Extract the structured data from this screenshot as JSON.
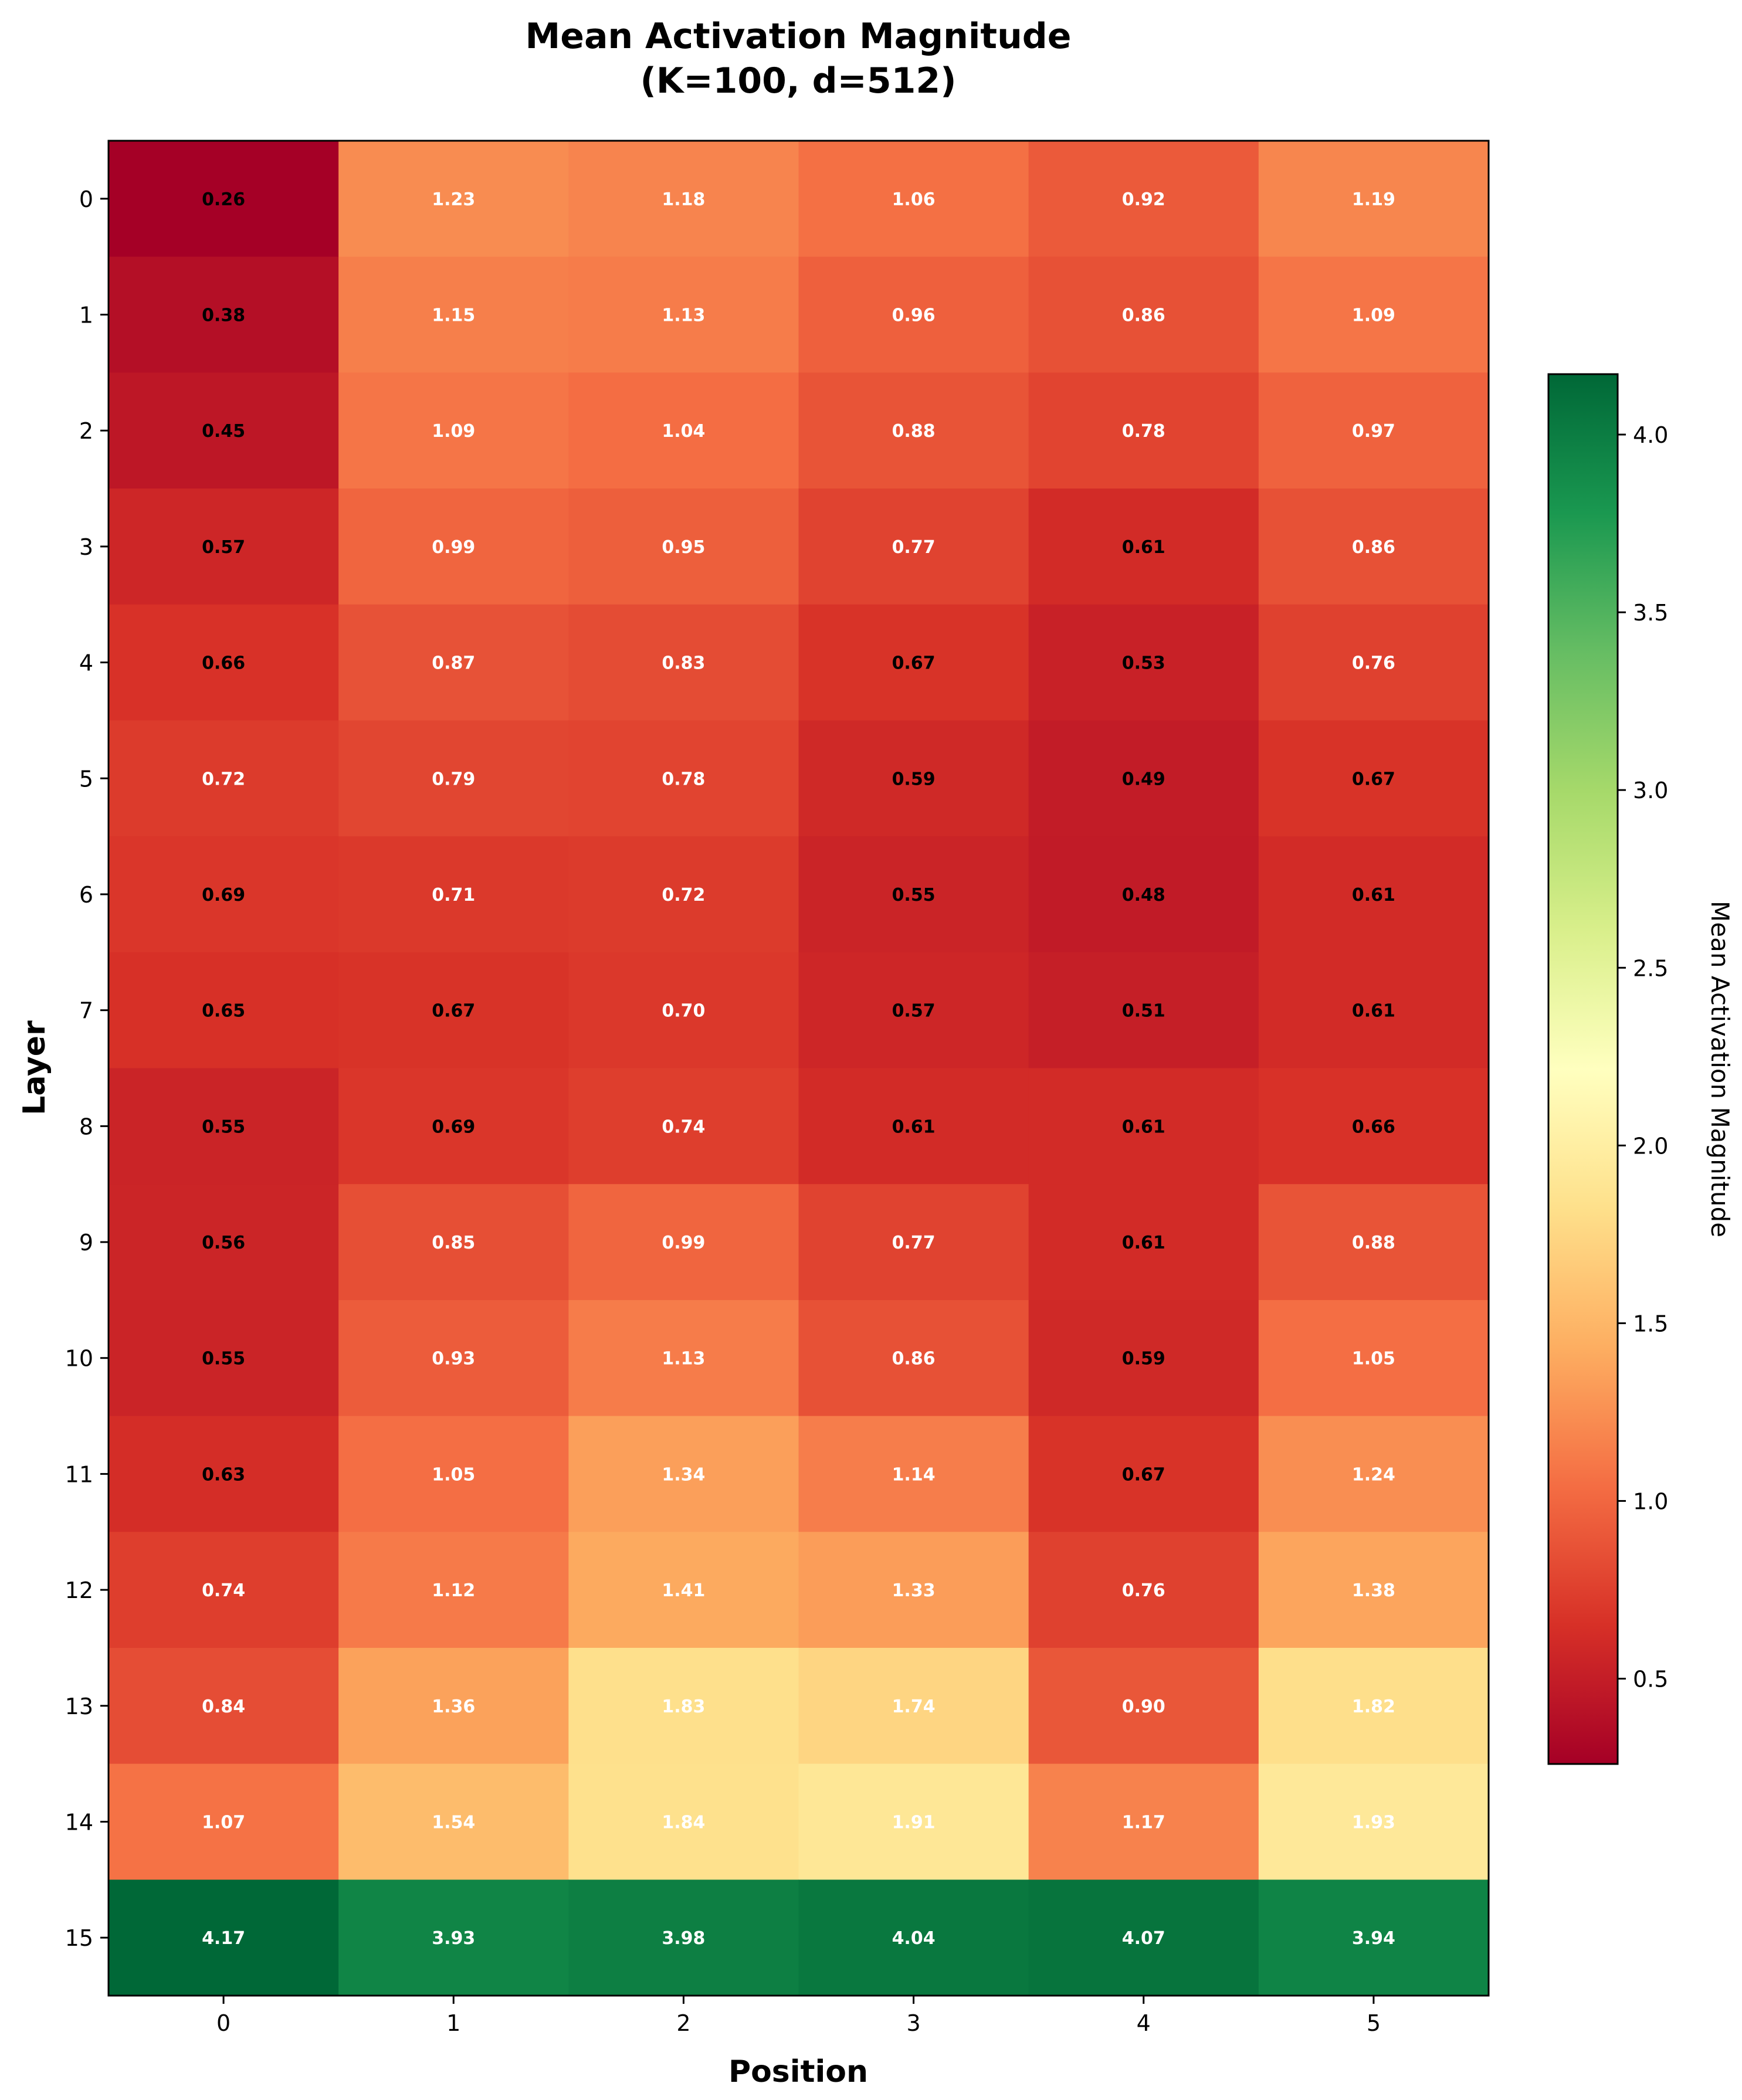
{
  "chart_data": {
    "type": "heatmap",
    "title_lines": [
      "Mean Activation Magnitude",
      "(K=100, d=512)"
    ],
    "xlabel": "Position",
    "ylabel": "Layer",
    "x_categories": [
      "0",
      "1",
      "2",
      "3",
      "4",
      "5"
    ],
    "y_categories": [
      "0",
      "1",
      "2",
      "3",
      "4",
      "5",
      "6",
      "7",
      "8",
      "9",
      "10",
      "11",
      "12",
      "13",
      "14",
      "15"
    ],
    "values": [
      [
        0.26,
        1.23,
        1.18,
        1.06,
        0.92,
        1.19
      ],
      [
        0.38,
        1.15,
        1.13,
        0.96,
        0.86,
        1.09
      ],
      [
        0.45,
        1.09,
        1.04,
        0.88,
        0.78,
        0.97
      ],
      [
        0.57,
        0.99,
        0.95,
        0.77,
        0.61,
        0.86
      ],
      [
        0.66,
        0.87,
        0.83,
        0.67,
        0.53,
        0.76
      ],
      [
        0.72,
        0.79,
        0.78,
        0.59,
        0.49,
        0.67
      ],
      [
        0.69,
        0.71,
        0.72,
        0.55,
        0.48,
        0.61
      ],
      [
        0.65,
        0.67,
        0.7,
        0.57,
        0.51,
        0.61
      ],
      [
        0.55,
        0.69,
        0.74,
        0.61,
        0.61,
        0.66
      ],
      [
        0.56,
        0.85,
        0.99,
        0.77,
        0.61,
        0.88
      ],
      [
        0.55,
        0.93,
        1.13,
        0.86,
        0.59,
        1.05
      ],
      [
        0.63,
        1.05,
        1.34,
        1.14,
        0.67,
        1.24
      ],
      [
        0.74,
        1.12,
        1.41,
        1.33,
        0.76,
        1.38
      ],
      [
        0.84,
        1.36,
        1.83,
        1.74,
        0.9,
        1.82
      ],
      [
        1.07,
        1.54,
        1.84,
        1.91,
        1.17,
        1.93
      ],
      [
        4.17,
        3.93,
        3.98,
        4.04,
        4.07,
        3.94
      ]
    ],
    "colormap": "RdYlGn",
    "vmin": 0.26,
    "vmax": 4.17,
    "colorbar": {
      "label": "Mean Activation Magnitude",
      "ticks": [
        0.5,
        1.0,
        1.5,
        2.0,
        2.5,
        3.0,
        3.5,
        4.0
      ],
      "tick_labels": [
        "0.5",
        "1.0",
        "1.5",
        "2.0",
        "2.5",
        "3.0",
        "3.5",
        "4.0"
      ]
    },
    "grid": false
  }
}
